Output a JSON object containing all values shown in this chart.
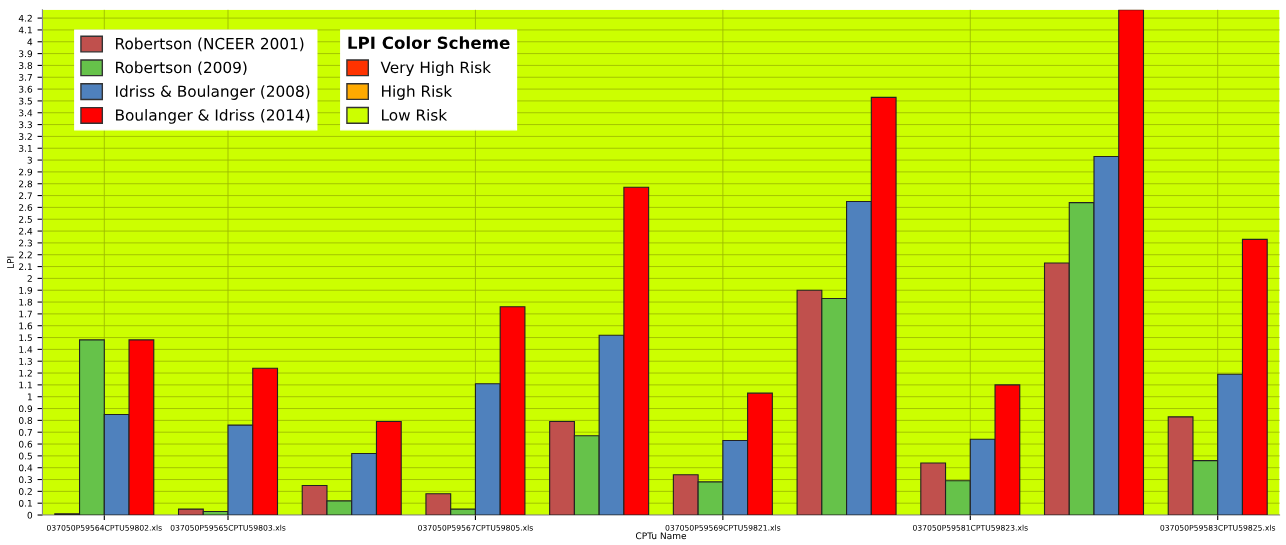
{
  "chart_data": {
    "type": "bar",
    "xlabel": "CPTu Name",
    "ylabel": "LPI",
    "legend_title": "LPI Color Scheme",
    "categories": [
      "037050P59564CPTU59802.xls",
      "037050P59565CPTU59803.xls",
      null,
      "037050P59567CPTU59805.xls",
      null,
      "037050P59569CPTU59821.xls",
      null,
      "037050P59581CPTU59823.xls",
      null,
      "037050P59583CPTU59825.xls"
    ],
    "series": [
      {
        "name": "Robertson (NCEER 2001)",
        "color": "#c0504d",
        "values": [
          0.01,
          0.05,
          0.25,
          0.18,
          0.79,
          0.34,
          1.9,
          0.44,
          2.13,
          0.83
        ]
      },
      {
        "name": "Robertson (2009)",
        "color": "#66c24a",
        "values": [
          1.48,
          0.03,
          0.12,
          0.05,
          0.67,
          0.28,
          1.83,
          0.29,
          2.64,
          0.46
        ]
      },
      {
        "name": "Idriss & Boulanger (2008)",
        "color": "#4f81bd",
        "values": [
          0.85,
          0.76,
          0.52,
          1.11,
          1.52,
          0.63,
          2.65,
          0.64,
          3.03,
          1.19
        ]
      },
      {
        "name": "Boulanger & Idriss (2014)",
        "color": "#ff0000",
        "values": [
          1.48,
          1.24,
          0.79,
          1.76,
          2.77,
          1.03,
          3.53,
          1.1,
          4.27,
          2.33
        ]
      }
    ],
    "bands": [
      {
        "axis": "y",
        "from": 0,
        "to": 4.27,
        "label": "Low Risk",
        "color": "#ccff00"
      }
    ],
    "annotations": [
      "Very High Risk",
      "High Risk"
    ],
    "ylim": [
      0,
      4.27
    ],
    "yticks": [
      0,
      0.1,
      0.2,
      0.3,
      0.4,
      0.5,
      0.6,
      0.7,
      0.8,
      0.9,
      1,
      1.1,
      1.2,
      1.3,
      1.4,
      1.5,
      1.6,
      1.7,
      1.8,
      1.9,
      2,
      2.1,
      2.2,
      2.3,
      2.4,
      2.5,
      2.6,
      2.7,
      2.8,
      2.9,
      3,
      3.1,
      3.2,
      3.3,
      3.4,
      3.5,
      3.6,
      3.7,
      3.8,
      3.9,
      4,
      4.1,
      4.2
    ],
    "grid": true,
    "legend": "top left"
  }
}
